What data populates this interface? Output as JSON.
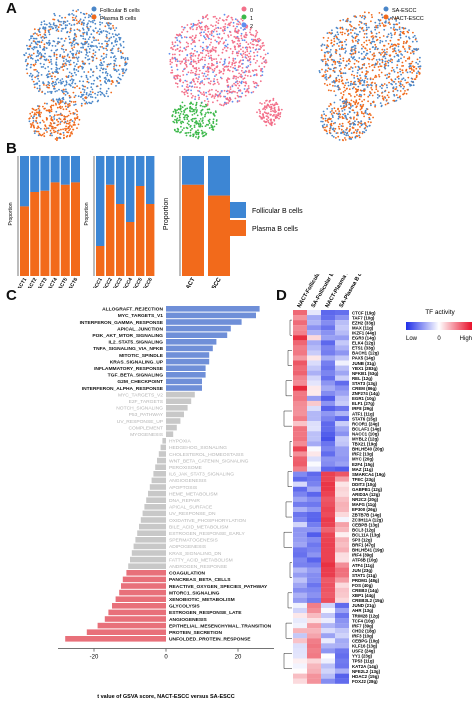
{
  "panels": {
    "A": {
      "label": "A",
      "umap1": {
        "legend": [
          "Follicular B cells",
          "Plasma B cells"
        ],
        "colors": [
          "#4a86c8",
          "#f06a1c"
        ]
      },
      "umap2": {
        "legend": [
          "0",
          "1",
          "2"
        ],
        "colors": [
          "#f3708a",
          "#3cb84a",
          "#5e8ef0"
        ]
      },
      "umap3": {
        "legend": [
          "SA-ESCC",
          "NACT-ESCC"
        ],
        "colors": [
          "#4a86c8",
          "#f06a1c"
        ]
      }
    },
    "B": {
      "label": "B",
      "y_title": "Proportion",
      "legend": [
        "Follicular B cells",
        "Plasma B cells"
      ],
      "colors": {
        "follicular": "#3d86d4",
        "plasma": "#f26a1b"
      },
      "bar_sets": [
        {
          "categories": [
            "NACT1",
            "NACT2",
            "NACT3",
            "NACT4",
            "NACT5",
            "NACT6"
          ],
          "plasma": [
            0.58,
            0.7,
            0.71,
            0.78,
            0.76,
            0.78
          ]
        },
        {
          "categories": [
            "SA-ESCC1",
            "SA-ESCC2",
            "SA-ESCC3",
            "SA-ESCC4",
            "SA-ESCC5",
            "SA-ESCC6"
          ],
          "plasma": [
            0.25,
            0.76,
            0.6,
            0.45,
            0.75,
            0.6
          ]
        },
        {
          "categories": [
            "NACT",
            "SA-ESCC"
          ],
          "plasma": [
            0.76,
            0.67
          ]
        }
      ]
    },
    "C": {
      "label": "C",
      "x_ticks": [
        "-20",
        "0",
        "20"
      ],
      "x_title": "t value of GSVA score, NACT-ESCC  versus SA-ESCC"
    },
    "D": {
      "label": "D",
      "column_labels": [
        "NACT-Follicular B cells",
        "SA-Follicular B cells",
        "NACT-Plasma B cells",
        "SA-Plasma B cells"
      ],
      "legend_title": "TF activity",
      "legend_low": "Low",
      "legend_zero": "0",
      "legend_high": "High"
    }
  },
  "chart_data": [
    {
      "type": "bar",
      "categories": [
        "NACT1",
        "NACT2",
        "NACT3",
        "NACT4",
        "NACT5",
        "NACT6"
      ],
      "series": [
        {
          "name": "Plasma B cells",
          "values": [
            0.58,
            0.7,
            0.71,
            0.78,
            0.76,
            0.78
          ]
        },
        {
          "name": "Follicular B cells",
          "values": [
            0.42,
            0.3,
            0.29,
            0.22,
            0.24,
            0.22
          ]
        }
      ],
      "ylabel": "Proportion",
      "ylim": [
        0,
        1
      ]
    },
    {
      "type": "bar",
      "categories": [
        "SA-ESCC1",
        "SA-ESCC2",
        "SA-ESCC3",
        "SA-ESCC4",
        "SA-ESCC5",
        "SA-ESCC6"
      ],
      "series": [
        {
          "name": "Plasma B cells",
          "values": [
            0.25,
            0.76,
            0.6,
            0.45,
            0.75,
            0.6
          ]
        },
        {
          "name": "Follicular B cells",
          "values": [
            0.75,
            0.24,
            0.4,
            0.55,
            0.25,
            0.4
          ]
        }
      ],
      "ylabel": "Proportion",
      "ylim": [
        0,
        1
      ]
    },
    {
      "type": "bar",
      "categories": [
        "NACT",
        "SA-ESCC"
      ],
      "series": [
        {
          "name": "Plasma B cells",
          "values": [
            0.76,
            0.67
          ]
        },
        {
          "name": "Follicular B cells",
          "values": [
            0.24,
            0.33
          ]
        }
      ],
      "ylabel": "Proportion",
      "ylim": [
        0,
        1
      ]
    },
    {
      "type": "bar",
      "orientation": "horizontal",
      "xlabel": "t value of GSVA score, NACT-ESCC  versus SA-ESCC",
      "xlim": [
        -30,
        30
      ],
      "colors": {
        "up": "#6f8fd8",
        "ns": "#c8c8c8",
        "down": "#e8707a"
      },
      "bars": [
        {
          "label": "ALLOGRAFT_REJECTION",
          "value": 26,
          "group": "up"
        },
        {
          "label": "MYC_TARGETS_V1",
          "value": 25,
          "group": "up"
        },
        {
          "label": "INTERFERON_GAMMA_RESPONSE",
          "value": 21,
          "group": "up"
        },
        {
          "label": "APICAL_JUNCTION",
          "value": 18,
          "group": "up"
        },
        {
          "label": "PI3K_AKT_MTOR_SIGNALING",
          "value": 17,
          "group": "up"
        },
        {
          "label": "IL2_STAT5_SIGNALING",
          "value": 14,
          "group": "up"
        },
        {
          "label": "TNFA_SIGNALING_VIA_NFKB",
          "value": 13,
          "group": "up"
        },
        {
          "label": "MITOTIC_SPINDLE",
          "value": 12,
          "group": "up"
        },
        {
          "label": "KRAS_SIGNALING_UP",
          "value": 12,
          "group": "up"
        },
        {
          "label": "INFLAMMATORY_RESPONSE",
          "value": 11,
          "group": "up"
        },
        {
          "label": "TGF_BETA_SIGNALING",
          "value": 11,
          "group": "up"
        },
        {
          "label": "G2M_CHECKPOINT",
          "value": 10,
          "group": "up"
        },
        {
          "label": "INTERFERON_ALPHA_RESPONSE",
          "value": 10,
          "group": "up"
        },
        {
          "label": "MYC_TARGETS_V2",
          "value": 8,
          "group": "ns"
        },
        {
          "label": "E2F_TARGETS",
          "value": 7,
          "group": "ns"
        },
        {
          "label": "NOTCH_SIGNALING",
          "value": 6,
          "group": "ns"
        },
        {
          "label": "P53_PATHWAY",
          "value": 5,
          "group": "ns"
        },
        {
          "label": "UV_RESPONSE_UP",
          "value": 4,
          "group": "ns"
        },
        {
          "label": "COMPLEMENT",
          "value": 3,
          "group": "ns"
        },
        {
          "label": "MYOGENESIS",
          "value": 2,
          "group": "ns"
        },
        {
          "label": "HYPOXIA",
          "value": -1,
          "group": "ns"
        },
        {
          "label": "HEDGEHOG_SIGNALING",
          "value": -1.5,
          "group": "ns"
        },
        {
          "label": "CHOLESTEROL_HOMEOSTASIS",
          "value": -2,
          "group": "ns"
        },
        {
          "label": "WNT_BETA_CATENIN_SIGNALING",
          "value": -2.5,
          "group": "ns"
        },
        {
          "label": "PEROXISOME",
          "value": -3,
          "group": "ns"
        },
        {
          "label": "IL6_JAK_STAT3_SIGNALING",
          "value": -3.5,
          "group": "ns"
        },
        {
          "label": "ANGIOGENESIS",
          "value": -4,
          "group": "ns"
        },
        {
          "label": "APOPTOSIS",
          "value": -4.5,
          "group": "ns"
        },
        {
          "label": "HEME_METABOLISM",
          "value": -5,
          "group": "ns"
        },
        {
          "label": "DNA_REPAIR",
          "value": -5.5,
          "group": "ns"
        },
        {
          "label": "APICAL_SURFACE",
          "value": -6,
          "group": "ns"
        },
        {
          "label": "UV_RESPONSE_DN",
          "value": -6.5,
          "group": "ns"
        },
        {
          "label": "OXIDATIVE_PHOSPHORYLATION",
          "value": -7,
          "group": "ns"
        },
        {
          "label": "BILE_ACID_METABOLISM",
          "value": -7.5,
          "group": "ns"
        },
        {
          "label": "ESTROGEN_RESPONSE_EARLY",
          "value": -8,
          "group": "ns"
        },
        {
          "label": "SPERMATOGENESIS",
          "value": -8.5,
          "group": "ns"
        },
        {
          "label": "ADIPOGENESIS",
          "value": -9,
          "group": "ns"
        },
        {
          "label": "KRAS_SIGNALING_DN",
          "value": -9.5,
          "group": "ns"
        },
        {
          "label": "FATTY_ACID_METABOLISM",
          "value": -10,
          "group": "ns"
        },
        {
          "label": "ANDROGEN_RESPONSE",
          "value": -10.5,
          "group": "ns"
        },
        {
          "label": "COAGULATION",
          "value": -11,
          "group": "down"
        },
        {
          "label": "PANCREAS_BETA_CELLS",
          "value": -12,
          "group": "down"
        },
        {
          "label": "REACTIVE_OXYGEN_SPECIES_PATHWAY",
          "value": -12.5,
          "group": "down"
        },
        {
          "label": "MTORC1_SIGNALING",
          "value": -13,
          "group": "down"
        },
        {
          "label": "XENOBIOTIC_METABOLISM",
          "value": -14,
          "group": "down"
        },
        {
          "label": "GLYCOLYSIS",
          "value": -15,
          "group": "down"
        },
        {
          "label": "ESTROGEN_RESPONSE_LATE",
          "value": -16,
          "group": "down"
        },
        {
          "label": "ANGIOGENESIS",
          "value": -17,
          "group": "down"
        },
        {
          "label": "EPITHELIAL_MESENCHYMAL_TRANSITION",
          "value": -19,
          "group": "down"
        },
        {
          "label": "PROTEIN_SECRETION",
          "value": -22,
          "group": "down"
        },
        {
          "label": "UNFOLDED_PROTEIN_RESPONSE",
          "value": -28,
          "group": "down"
        }
      ]
    },
    {
      "type": "heatmap",
      "columns": [
        "NACT-Follicular B cells",
        "SA-Follicular B cells",
        "NACT-Plasma B cells",
        "SA-Plasma B cells"
      ],
      "rows": [
        "CTCF (19g)",
        "TAF7 (10g)",
        "EZH2 (33g)",
        "MAX (11g)",
        "IKZF1 (44g)",
        "EGR3 (14g)",
        "ELK4 (12g)",
        "ETS1 (33g)",
        "BACH1 (12g)",
        "PAX5 (14g)",
        "JUNB (31g)",
        "YBX1 (283g)",
        "NFKB1 (53g)",
        "REL (12g)",
        "STAT3 (13g)",
        "CREM (86g)",
        "ZNF274 (14g)",
        "EGR1 (10g)",
        "ELF1 (27g)",
        "IRF8 (29g)",
        "ATF1 (11g)",
        "STAT6 (15g)",
        "RCOR1 (24g)",
        "BCLAF1 (14g)",
        "NACC1 (10g)",
        "MYBL2 (12g)",
        "TBX21 (19g)",
        "BHLHE40 (20g)",
        "IRF2 (13g)",
        "MYC (20g)",
        "E2F4 (15g)",
        "MAZ (11g)",
        "SMARCA4 (19g)",
        "TFEC (23g)",
        "DDIT3 (10g)",
        "GABPB1 (12g)",
        "ARID3A (12g)",
        "NR2C2 (20g)",
        "MAFG (11g)",
        "EP300 (26g)",
        "ZBTB7B (14g)",
        "ZC3H11A (12g)",
        "CEBPB (13g)",
        "BCL3 (12g)",
        "BCL11A (13g)",
        "SP3 (12g)",
        "BRF1 (47g)",
        "BHLHE41 (19g)",
        "IRF4 (39g)",
        "ATF6B (10g)",
        "ATF4 (11g)",
        "JUN (23g)",
        "STAT1 (11g)",
        "PRDM1 (48g)",
        "FOS (40g)",
        "CREB3 (14g)",
        "XBP1 (44g)",
        "CREB3L2 (15g)",
        "JUND (21g)",
        "AHR (13g)",
        "TRIM28 (12g)",
        "TCF4 (10g)",
        "IRF7 (39g)",
        "CHD2 (18g)",
        "IRF3 (10g)",
        "CEBPG (10g)",
        "KLF16 (13g)",
        "USF2 (24g)",
        "YY1 (23g)",
        "TP53 (11g)",
        "KAT2A (14g)",
        "NFE2L2 (13g)",
        "HDAC2 (15g)",
        "FOXJ2 (28g)"
      ]
    }
  ]
}
